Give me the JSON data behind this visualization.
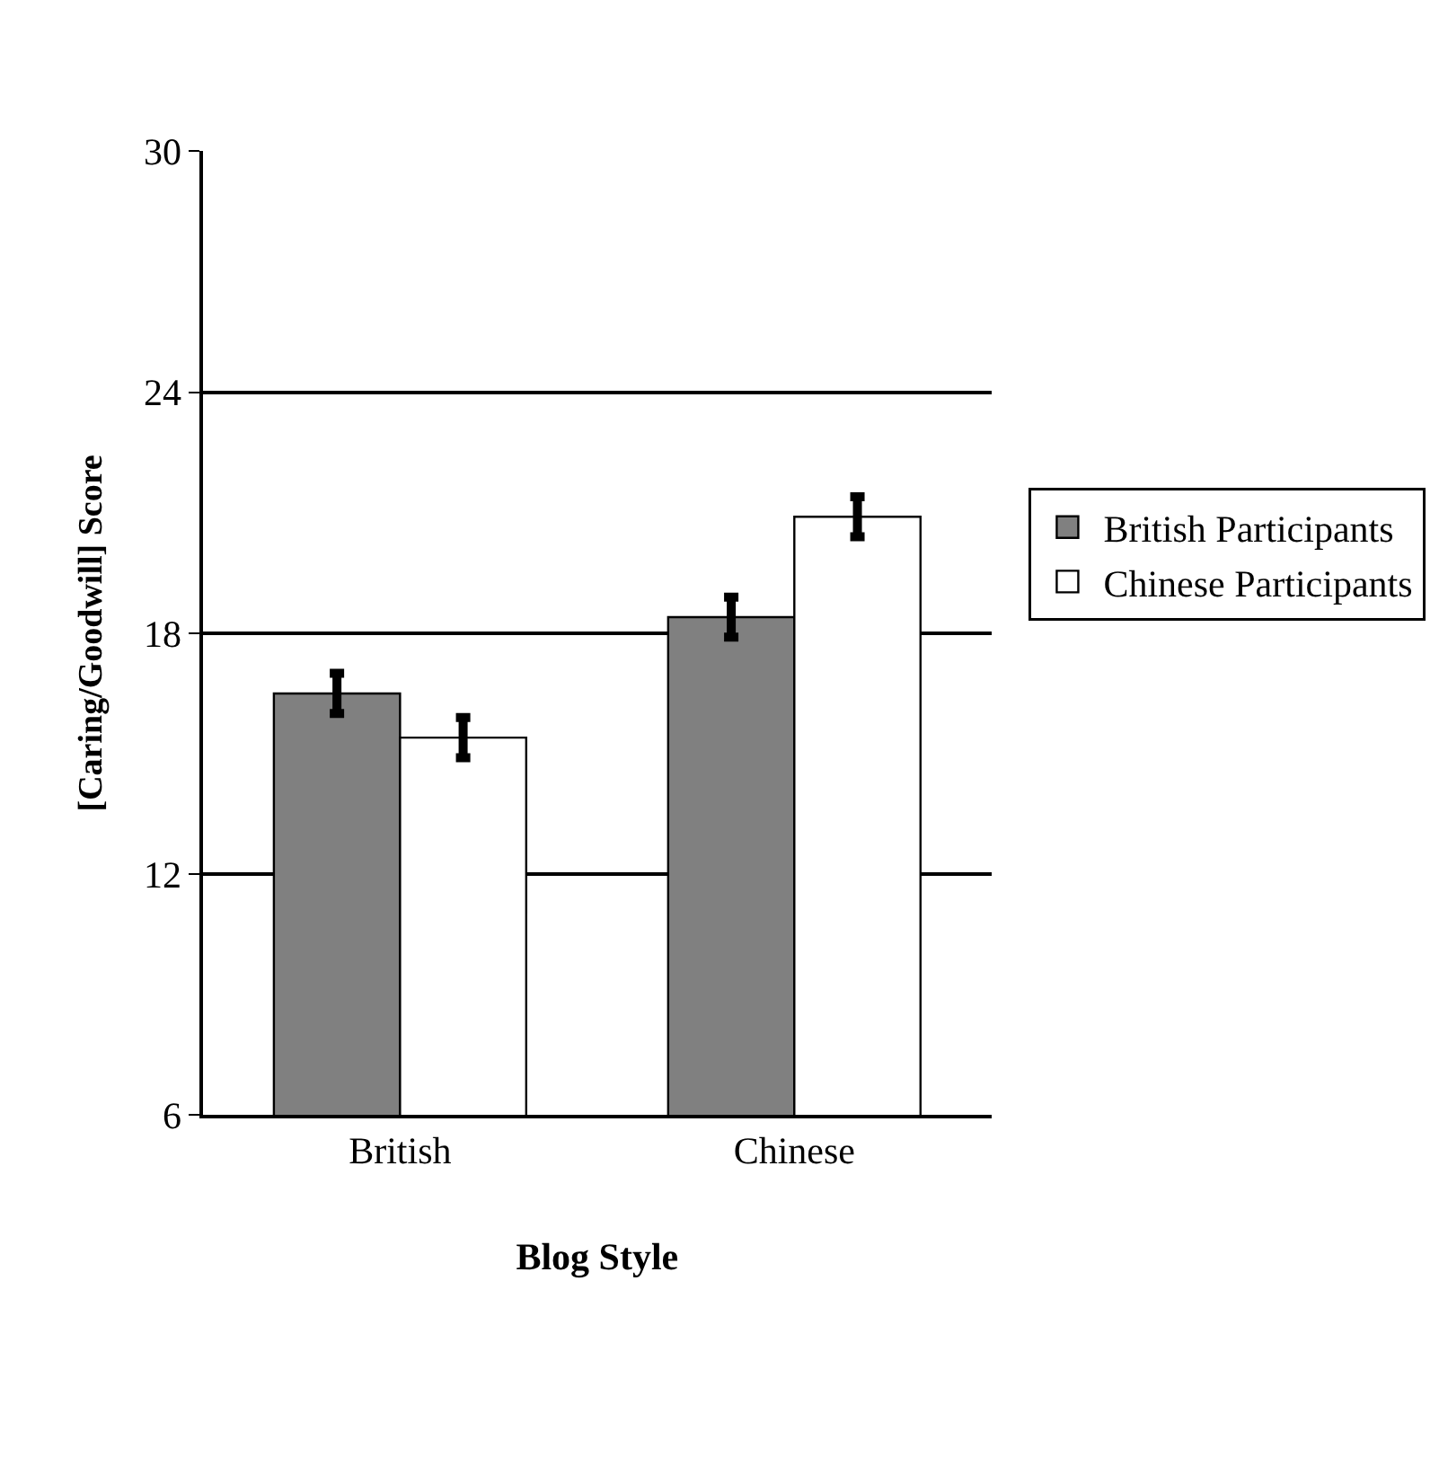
{
  "chart_data": {
    "type": "bar",
    "xlabel": "Blog Style",
    "ylabel": "[Caring/Goodwill] Score",
    "categories": [
      "British",
      "Chinese"
    ],
    "series": [
      {
        "name": "British Participants",
        "color": "#808080",
        "values": [
          16.5,
          18.4
        ],
        "errors": [
          0.5,
          0.5
        ]
      },
      {
        "name": "Chinese Participants",
        "color": "#ffffff",
        "values": [
          15.4,
          20.9
        ],
        "errors": [
          0.5,
          0.5
        ]
      }
    ],
    "ylim": [
      6,
      30
    ],
    "yticks": [
      6,
      12,
      18,
      24,
      30
    ],
    "grid": "y",
    "legend": "right"
  }
}
